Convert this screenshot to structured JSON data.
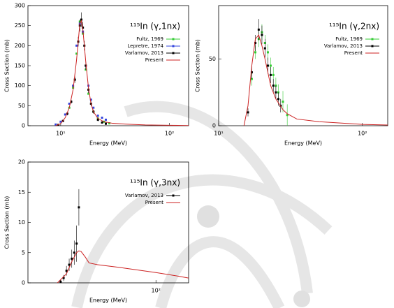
{
  "chart_data": [
    {
      "type": "line",
      "title": "¹¹⁵In (γ,1nx)",
      "xlabel": "Energy (MeV)",
      "ylabel": "Cross Section (mb)",
      "xscale": "log",
      "xlim": [
        5,
        150
      ],
      "xticks": [
        {
          "value": 10,
          "label": "10¹"
        },
        {
          "value": 100,
          "label": "10²"
        }
      ],
      "ylim": [
        0,
        300
      ],
      "yticks": [
        0,
        50,
        100,
        150,
        200,
        250,
        300
      ],
      "grid": false,
      "legend": "upper right",
      "series": [
        {
          "name": "Fultz, 1969",
          "color": "#33cc33",
          "mode": "markers",
          "x": [
            12,
            13,
            14,
            15,
            16,
            17,
            18,
            20,
            22,
            25,
            28
          ],
          "values": [
            45,
            95,
            180,
            260,
            230,
            140,
            80,
            35,
            18,
            10,
            6
          ]
        },
        {
          "name": "Lepretre, 1974",
          "color": "#3344dd",
          "mode": "markers",
          "x": [
            9,
            10,
            11,
            12,
            13,
            14,
            15,
            16,
            17,
            18,
            19,
            20,
            22,
            24,
            26
          ],
          "values": [
            3,
            10,
            28,
            55,
            100,
            200,
            255,
            235,
            150,
            100,
            65,
            45,
            25,
            20,
            15
          ]
        },
        {
          "name": "Varlamov, 2013",
          "color": "#000000",
          "mode": "markers",
          "x": [
            9.5,
            10.5,
            11.5,
            12.5,
            13.5,
            14.5,
            15,
            15.5,
            16,
            16.5,
            17,
            18,
            19,
            20,
            22,
            24,
            26
          ],
          "values": [
            2,
            12,
            30,
            60,
            115,
            210,
            250,
            265,
            245,
            200,
            150,
            90,
            55,
            35,
            15,
            8,
            5
          ],
          "errors": [
            2,
            3,
            4,
            5,
            8,
            12,
            15,
            18,
            15,
            12,
            10,
            8,
            6,
            5,
            4,
            3,
            3
          ]
        },
        {
          "name": "Present",
          "color": "#cc2222",
          "mode": "line",
          "x": [
            9,
            10,
            11,
            12,
            13,
            14,
            15,
            15.5,
            16,
            17,
            18,
            19,
            20,
            22,
            25,
            30,
            40,
            60,
            100,
            150
          ],
          "values": [
            0,
            5,
            20,
            45,
            90,
            165,
            255,
            262,
            240,
            160,
            95,
            55,
            35,
            18,
            10,
            6,
            4,
            2,
            1,
            0.5
          ]
        }
      ]
    },
    {
      "type": "line",
      "title": "¹¹⁵In (γ,2nx)",
      "xlabel": "Energy (MeV)",
      "ylabel": "Cross Section (mb)",
      "xscale": "log",
      "xlim": [
        10,
        150
      ],
      "xticks": [
        {
          "value": 10,
          "label": "10¹"
        },
        {
          "value": 100,
          "label": "10²"
        }
      ],
      "ylim": [
        0,
        90
      ],
      "yticks": [
        0,
        50
      ],
      "grid": false,
      "legend": "upper right",
      "series": [
        {
          "name": "Fultz, 1969",
          "color": "#33cc33",
          "mode": "markers",
          "x": [
            17,
            18,
            19,
            20,
            21,
            22,
            23,
            24,
            25,
            26,
            28,
            30
          ],
          "values": [
            35,
            55,
            65,
            70,
            62,
            55,
            45,
            38,
            30,
            25,
            18,
            8
          ],
          "errors": [
            5,
            5,
            6,
            6,
            6,
            6,
            6,
            6,
            6,
            6,
            8,
            8
          ]
        },
        {
          "name": "Varlamov, 2013",
          "color": "#000000",
          "mode": "markers",
          "x": [
            16,
            17,
            18,
            19,
            20,
            21,
            22,
            23,
            24,
            25,
            26,
            27
          ],
          "values": [
            10,
            40,
            62,
            72,
            68,
            58,
            45,
            38,
            30,
            25,
            20,
            15
          ],
          "errors": [
            3,
            5,
            6,
            8,
            7,
            7,
            6,
            6,
            5,
            5,
            5,
            5
          ]
        },
        {
          "name": "Present",
          "color": "#cc2222",
          "mode": "line",
          "x": [
            15,
            16,
            17,
            18,
            19,
            20,
            21,
            22,
            23,
            25,
            28,
            30,
            35,
            50,
            100,
            150
          ],
          "values": [
            0,
            15,
            45,
            65,
            68,
            60,
            50,
            40,
            30,
            20,
            12,
            9,
            5,
            3,
            1,
            0.5
          ]
        }
      ]
    },
    {
      "type": "line",
      "title": "¹¹⁵In (γ,3nx)",
      "xlabel": "Energy (MeV)",
      "ylabel": "Cross Section (mb)",
      "xscale": "log",
      "xlim": [
        10,
        180
      ],
      "xticks": [
        {
          "value": 100,
          "label": "10²"
        }
      ],
      "ylim": [
        0,
        20
      ],
      "yticks": [
        0,
        5,
        10,
        15,
        20
      ],
      "grid": false,
      "legend": "upper right",
      "series": [
        {
          "name": "Varlamov, 2013",
          "color": "#000000",
          "mode": "markers",
          "x": [
            18,
            19,
            20,
            21,
            22,
            23,
            24,
            25
          ],
          "values": [
            0.2,
            0.8,
            2,
            3,
            4,
            5,
            6.5,
            12.5
          ],
          "errors": [
            0.3,
            0.5,
            0.8,
            1,
            1.5,
            2,
            3,
            3
          ]
        },
        {
          "name": "Present",
          "color": "#cc2222",
          "mode": "line",
          "x": [
            17,
            20,
            22,
            24,
            25,
            26,
            28,
            30,
            35,
            50,
            80,
            100,
            150,
            180
          ],
          "values": [
            0,
            1.5,
            3.5,
            5,
            5.3,
            5.2,
            4.3,
            3.3,
            3,
            2.6,
            2,
            1.7,
            1.1,
            0.8
          ]
        }
      ]
    }
  ]
}
